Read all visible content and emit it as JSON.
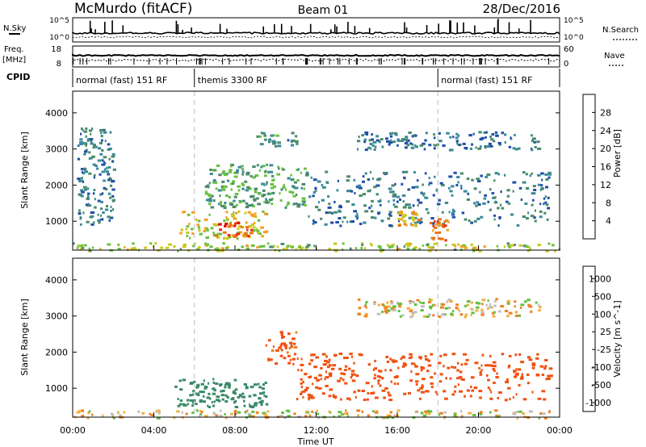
{
  "header": {
    "station": "McMurdo (fitACF)",
    "beam": "Beam 01",
    "date": "28/Dec/2016"
  },
  "strip_labels": {
    "nsky": "N.Sky",
    "nsky_hi": "10^5",
    "nsky_lo": "10^0",
    "freq": "Freq.",
    "freq_unit": "[MHz]",
    "freq_hi": "18",
    "freq_lo": "8",
    "cpid": "CPID",
    "nsearch": "N.Search",
    "nsearch_hi": "10^5",
    "nsearch_lo": "10^0",
    "nave": "Nave",
    "nave_hi": "60",
    "nave_lo": "0"
  },
  "cpid_modes": [
    {
      "label": "normal (fast) 151 RF",
      "start_hour": 0
    },
    {
      "label": "themis 3300 RF",
      "start_hour": 6
    },
    {
      "label": "normal (fast) 151 RF",
      "start_hour": 18
    }
  ],
  "colors": {
    "power_scale": [
      "#1010e0",
      "#2050a8",
      "#3a8a9a",
      "#4a8a6a",
      "#6ac040",
      "#c8c820",
      "#f0a020",
      "#f07010",
      "#e83010",
      "#e00000"
    ],
    "velocity_scale": [
      "#e00000",
      "#f05010",
      "#f08020",
      "#f0b040",
      "#bebebe",
      "#60c040",
      "#3a8a6a",
      "#2a6aa0",
      "#1a40c0"
    ]
  },
  "chart_data": [
    {
      "type": "heatmap",
      "title": "",
      "xlabel": "",
      "ylabel": "Slant Range [km]",
      "xlim": [
        0,
        24
      ],
      "ylim": [
        200,
        4600
      ],
      "y_ticks": [
        1000,
        2000,
        3000,
        4000
      ],
      "x_ticks": [
        "00:00",
        "04:00",
        "08:00",
        "12:00",
        "16:00",
        "20:00",
        "00:00"
      ],
      "colorbar": {
        "label": "Power [dB]",
        "range": [
          0,
          32
        ],
        "ticks": [
          4,
          8,
          12,
          16,
          20,
          24,
          28
        ]
      },
      "regions": [
        {
          "t0": 0.0,
          "t1": 24.0,
          "r0": 200,
          "r1": 420,
          "value": 16
        },
        {
          "t0": 0.2,
          "t1": 2.0,
          "r0": 900,
          "r1": 3600,
          "value": 8
        },
        {
          "t0": 5.2,
          "t1": 9.5,
          "r0": 550,
          "r1": 1300,
          "value": 18
        },
        {
          "t0": 7.0,
          "t1": 8.8,
          "r0": 600,
          "r1": 1000,
          "value": 26
        },
        {
          "t0": 6.5,
          "t1": 11.5,
          "r0": 1400,
          "r1": 2600,
          "value": 12
        },
        {
          "t0": 9.0,
          "t1": 11.0,
          "r0": 3100,
          "r1": 3500,
          "value": 10
        },
        {
          "t0": 14.0,
          "t1": 23.0,
          "r0": 3000,
          "r1": 3500,
          "value": 8
        },
        {
          "t0": 11.5,
          "t1": 23.5,
          "r0": 900,
          "r1": 2400,
          "value": 8
        },
        {
          "t0": 16.0,
          "t1": 17.0,
          "r0": 900,
          "r1": 1300,
          "value": 20
        },
        {
          "t0": 17.5,
          "t1": 18.5,
          "r0": 500,
          "r1": 1100,
          "value": 24
        }
      ]
    },
    {
      "type": "heatmap",
      "title": "",
      "xlabel": "Time UT",
      "ylabel": "Slant Range [km]",
      "xlim": [
        0,
        24
      ],
      "ylim": [
        200,
        4600
      ],
      "y_ticks": [
        1000,
        2000,
        3000,
        4000
      ],
      "x_ticks": [
        "00:00",
        "04:00",
        "08:00",
        "12:00",
        "16:00",
        "20:00",
        "00:00"
      ],
      "colorbar": {
        "label": "Velocity [m s^-1]",
        "ticks": [
          1000,
          500,
          100,
          25,
          -25,
          -100,
          -500,
          -1000
        ]
      },
      "regions": [
        {
          "t0": 0.0,
          "t1": 24.0,
          "r0": 200,
          "r1": 420,
          "value": 0
        },
        {
          "t0": 5.0,
          "t1": 9.5,
          "r0": 500,
          "r1": 1300,
          "value": 300
        },
        {
          "t0": 9.5,
          "t1": 11.0,
          "r0": 1700,
          "r1": 2600,
          "value": -150
        },
        {
          "t0": 11.0,
          "t1": 23.5,
          "r0": 700,
          "r1": 2000,
          "value": -250
        },
        {
          "t0": 14.0,
          "t1": 23.0,
          "r0": 3000,
          "r1": 3500,
          "value": 0
        }
      ]
    }
  ]
}
